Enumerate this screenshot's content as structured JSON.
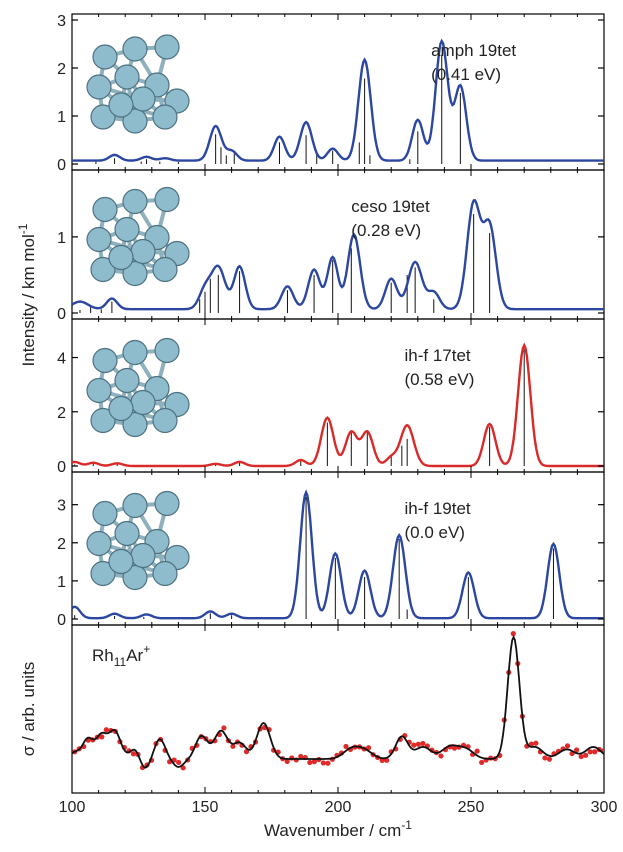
{
  "chart_data": {
    "type": "line",
    "x_axis": {
      "label": "Wavenumber / cm",
      "label_sup": "-1",
      "range": [
        100,
        300
      ],
      "ticks": [
        100,
        150,
        200,
        250,
        300
      ]
    },
    "y_axis_label": {
      "text": "Intensity / km mol",
      "sup": "-1"
    },
    "panels": [
      {
        "id": "amph",
        "title_lines": [
          "amph 19tet",
          "(0.41 eV)"
        ],
        "color": "#2b47a0",
        "ylim": [
          0,
          3
        ],
        "yticks": [
          0,
          1,
          2,
          3
        ],
        "width": 2.4,
        "baseline": 0.07,
        "sticks": [
          [
            109,
            0.05
          ],
          [
            116,
            0.12
          ],
          [
            126,
            0.05
          ],
          [
            128,
            0.1
          ],
          [
            133,
            0.05
          ],
          [
            140,
            0.04
          ],
          [
            154,
            0.62
          ],
          [
            156,
            0.35
          ],
          [
            158,
            0.18
          ],
          [
            161,
            0.22
          ],
          [
            178,
            0.45
          ],
          [
            188,
            0.6
          ],
          [
            192,
            0.2
          ],
          [
            198,
            0.28
          ],
          [
            208,
            0.45
          ],
          [
            210,
            1.78
          ],
          [
            212,
            0.18
          ],
          [
            227,
            0.1
          ],
          [
            230,
            0.68
          ],
          [
            239,
            2.28
          ],
          [
            246,
            1.48
          ]
        ],
        "peaks": [
          [
            116,
            0.12,
            2
          ],
          [
            128,
            0.08,
            2
          ],
          [
            135,
            0.05,
            2
          ],
          [
            154,
            0.72,
            2.2
          ],
          [
            160,
            0.2,
            2
          ],
          [
            178,
            0.5,
            2
          ],
          [
            188,
            0.8,
            2.2
          ],
          [
            198,
            0.25,
            2
          ],
          [
            210,
            2.1,
            2.3
          ],
          [
            230,
            0.85,
            2.1
          ],
          [
            239,
            2.48,
            2.3
          ],
          [
            246,
            1.55,
            2.2
          ]
        ]
      },
      {
        "id": "ceso",
        "title_lines": [
          "ceso 19tet",
          "(0.28 eV)"
        ],
        "color": "#2b47a0",
        "ylim": [
          0,
          1.8
        ],
        "yticks": [
          0,
          1
        ],
        "width": 2.4,
        "baseline": 0.05,
        "sticks": [
          [
            103,
            0.04
          ],
          [
            107,
            0.08
          ],
          [
            111,
            0.05
          ],
          [
            115,
            0.15
          ],
          [
            148,
            0.18
          ],
          [
            150,
            0.28
          ],
          [
            152,
            0.45
          ],
          [
            155,
            0.5
          ],
          [
            163,
            0.55
          ],
          [
            181,
            0.3
          ],
          [
            191,
            0.5
          ],
          [
            198,
            0.7
          ],
          [
            205,
            0.85
          ],
          [
            220,
            0.4
          ],
          [
            226,
            0.5
          ],
          [
            229,
            0.6
          ],
          [
            236,
            0.18
          ],
          [
            251,
            1.3
          ],
          [
            257,
            1.05
          ]
        ],
        "peaks": [
          [
            103,
            0.1,
            3
          ],
          [
            115,
            0.14,
            2
          ],
          [
            150,
            0.25,
            2.2
          ],
          [
            155,
            0.55,
            2.6
          ],
          [
            163,
            0.56,
            2.1
          ],
          [
            181,
            0.3,
            2.2
          ],
          [
            191,
            0.52,
            2.2
          ],
          [
            198,
            0.68,
            2
          ],
          [
            206,
            0.98,
            2.3
          ],
          [
            220,
            0.4,
            2.2
          ],
          [
            229,
            0.62,
            2.6
          ],
          [
            236,
            0.22,
            2.2
          ],
          [
            251,
            1.38,
            2.5
          ],
          [
            257,
            1.08,
            2.4
          ]
        ]
      },
      {
        "id": "ihf17",
        "title_lines": [
          "ih-f 17tet",
          "(0.58 eV)"
        ],
        "color": "#d92a2a",
        "ylim": [
          0,
          5.2
        ],
        "yticks": [
          0,
          2,
          4
        ],
        "width": 2.4,
        "baseline": 0.0,
        "sticks": [
          [
            101,
            0.06
          ],
          [
            108,
            0.08
          ],
          [
            117,
            0.08
          ],
          [
            154,
            0.05
          ],
          [
            163,
            0.12
          ],
          [
            186,
            0.22
          ],
          [
            196,
            1.6
          ],
          [
            205,
            1.3
          ],
          [
            211,
            1.3
          ],
          [
            220,
            0.35
          ],
          [
            224,
            0.75
          ],
          [
            226,
            1.0
          ],
          [
            257,
            1.45
          ],
          [
            270,
            4.3
          ]
        ],
        "peaks": [
          [
            101,
            0.15,
            2
          ],
          [
            108,
            0.12,
            2
          ],
          [
            117,
            0.1,
            2
          ],
          [
            154,
            0.08,
            2
          ],
          [
            163,
            0.15,
            2
          ],
          [
            186,
            0.22,
            2
          ],
          [
            196,
            1.78,
            2.3
          ],
          [
            205,
            1.25,
            2.2
          ],
          [
            211,
            1.25,
            2.2
          ],
          [
            220,
            0.3,
            2
          ],
          [
            226,
            1.5,
            2.5
          ],
          [
            257,
            1.55,
            2.2
          ],
          [
            270,
            4.45,
            2.3
          ]
        ]
      },
      {
        "id": "ihf19",
        "title_lines": [
          "ih-f 19tet",
          "(0.0 eV)"
        ],
        "color": "#2b47a0",
        "ylim": [
          0,
          3.7
        ],
        "yticks": [
          0,
          1,
          2,
          3
        ],
        "width": 2.4,
        "baseline": 0.02,
        "sticks": [
          [
            101,
            0.1
          ],
          [
            109,
            0.05
          ],
          [
            116,
            0.08
          ],
          [
            127,
            0.05
          ],
          [
            152,
            0.15
          ],
          [
            160,
            0.1
          ],
          [
            188,
            3.2
          ],
          [
            199,
            1.6
          ],
          [
            210,
            1.1
          ],
          [
            223,
            2.1
          ],
          [
            226,
            0.25
          ],
          [
            249,
            1.1
          ],
          [
            281,
            1.85
          ]
        ],
        "peaks": [
          [
            101,
            0.3,
            2
          ],
          [
            116,
            0.12,
            2
          ],
          [
            128,
            0.1,
            2
          ],
          [
            152,
            0.18,
            2
          ],
          [
            160,
            0.12,
            2
          ],
          [
            188,
            3.3,
            2.2
          ],
          [
            199,
            1.7,
            2.2
          ],
          [
            210,
            1.25,
            2.2
          ],
          [
            223,
            2.18,
            2.3
          ],
          [
            249,
            1.2,
            2.2
          ],
          [
            281,
            1.95,
            2.2
          ]
        ]
      },
      {
        "id": "exp",
        "label_main": "Rh",
        "label_sub": "11",
        "label_rest": "Ar",
        "label_sup": "+",
        "ylabel": "σ / arb. units",
        "color_line": "#111111",
        "color_dots": "#e02a2a",
        "ylim": [
          -0.35,
          1.6
        ],
        "baseline": 0.0,
        "peaks": [
          [
            101,
            0.08,
            2
          ],
          [
            106,
            0.25,
            2
          ],
          [
            111,
            0.28,
            2
          ],
          [
            116,
            0.35,
            2.3
          ],
          [
            124,
            0.15,
            2
          ],
          [
            127,
            -0.15,
            2
          ],
          [
            133,
            0.25,
            2
          ],
          [
            137,
            0.0,
            2
          ],
          [
            140,
            -0.1,
            2
          ],
          [
            148,
            0.2,
            2
          ],
          [
            150,
            0.12,
            2
          ],
          [
            156,
            0.35,
            2.5
          ],
          [
            163,
            0.2,
            2.5
          ],
          [
            172,
            0.45,
            2.5
          ],
          [
            185,
            0.0,
            3
          ],
          [
            205,
            0.12,
            3
          ],
          [
            210,
            0.1,
            3
          ],
          [
            224,
            0.28,
            2.3
          ],
          [
            232,
            0.15,
            3
          ],
          [
            242,
            0.15,
            3
          ],
          [
            248,
            0.12,
            3
          ],
          [
            252,
            0.0,
            3
          ],
          [
            259,
            0.0,
            3
          ],
          [
            266,
            1.52,
            2.2
          ],
          [
            274,
            0.15,
            3
          ],
          [
            286,
            0.12,
            3
          ],
          [
            296,
            0.15,
            3
          ]
        ]
      }
    ]
  }
}
